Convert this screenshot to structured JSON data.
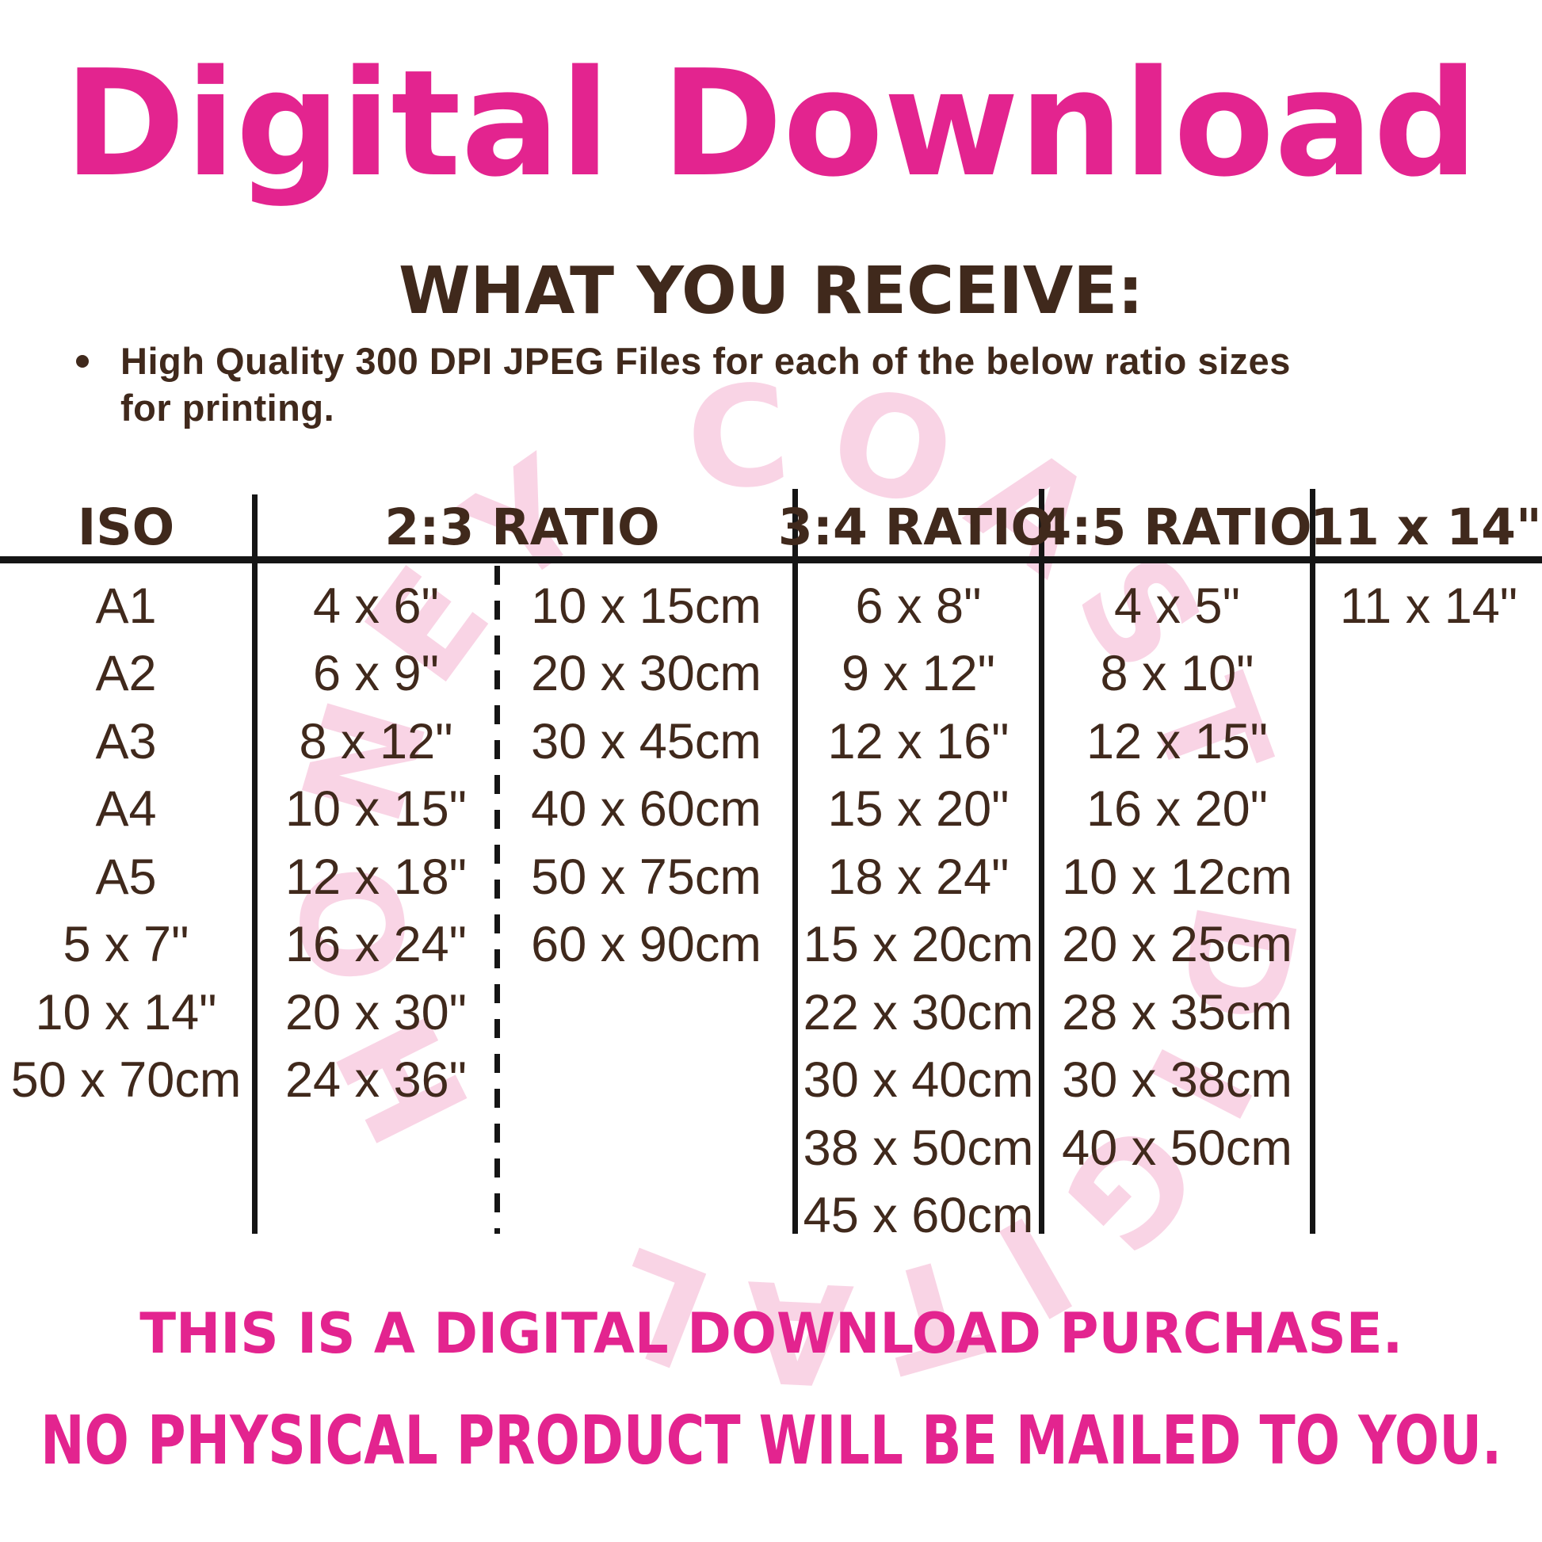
{
  "title": "Digital Download",
  "section": {
    "heading": "WHAT YOU RECEIVE:",
    "bullet_line1": "High Quality 300 DPI JPEG Files for each of the below ratio sizes",
    "bullet_line2": "for printing."
  },
  "watermark": {
    "text": "HONEY COAST DIGITAL"
  },
  "table": {
    "headers": {
      "iso": "ISO",
      "r23": "2:3 RATIO",
      "r34": "3:4 RATIO",
      "r45": "4:5 RATIO",
      "s1114": "11 x 14\""
    },
    "iso": [
      "A1",
      "A2",
      "A3",
      "A4",
      "A5",
      "5 x 7\"",
      "10 x 14\"",
      "50 x 70cm"
    ],
    "ratio23_inches": [
      "4 x 6\"",
      "6 x 9\"",
      "8 x 12\"",
      "10 x 15\"",
      "12 x 18\"",
      "16 x 24\"",
      "20 x 30\"",
      "24 x 36\""
    ],
    "ratio23_cm": [
      "10 x 15cm",
      "20 x 30cm",
      "30 x 45cm",
      "40 x 60cm",
      "50 x 75cm",
      "60 x 90cm"
    ],
    "ratio34": [
      "6 x 8\"",
      "9 x 12\"",
      "12 x 16\"",
      "15 x 20\"",
      "18 x 24\"",
      "15 x 20cm",
      "22 x 30cm",
      "30 x 40cm",
      "38 x 50cm",
      "45 x 60cm"
    ],
    "ratio45": [
      "4 x 5\"",
      "8 x 10\"",
      "12 x 15\"",
      "16 x 20\"",
      "10 x 12cm",
      "20 x 25cm",
      "28 x 35cm",
      "30 x 38cm",
      "40 x 50cm"
    ],
    "size_11x14": [
      "11 x 14\""
    ]
  },
  "footer": {
    "line1": "THIS IS A DIGITAL DOWNLOAD PURCHASE.",
    "line2": "NO PHYSICAL PRODUCT WILL BE MAILED TO YOU."
  },
  "colors": {
    "pink": "#e3248f",
    "brown": "#40291c",
    "watermark_pink": "#f8cfe2",
    "line_black": "#151515"
  }
}
